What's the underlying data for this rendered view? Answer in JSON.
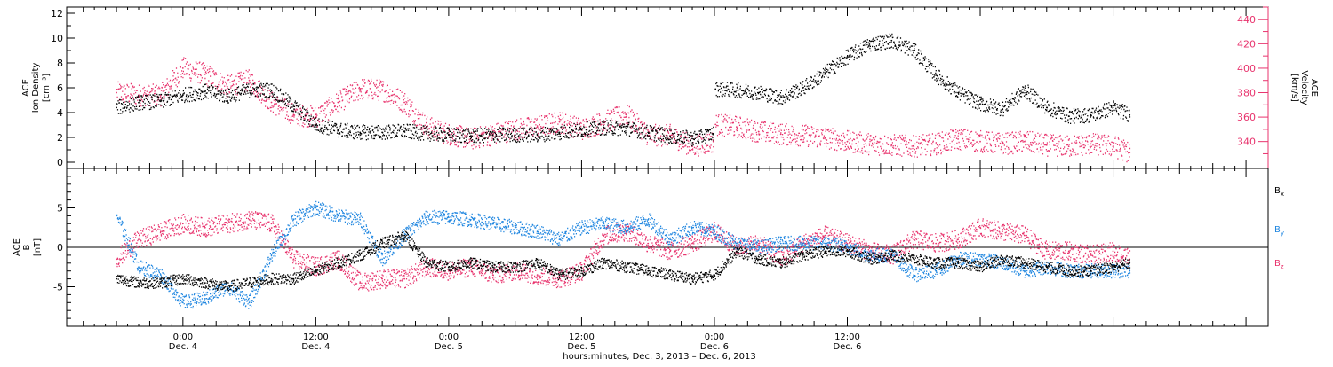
{
  "colors": {
    "density": "#000000",
    "velocity": "#e8336d",
    "bx": "#000000",
    "by": "#1f86e0",
    "bz": "#e8336d"
  },
  "chart_data": [
    {
      "type": "scatter",
      "panel": "top",
      "left_axis": {
        "label_lines": [
          "ACE",
          "Ion Density",
          "[cm⁻³]"
        ],
        "ylim": [
          -0.5,
          12.5
        ],
        "ticks": [
          0,
          2,
          4,
          6,
          8,
          10,
          12
        ]
      },
      "right_axis": {
        "label_lines": [
          "ACE",
          "Velocity",
          "[km/s]"
        ],
        "ylim": [
          318,
          450
        ],
        "ticks": [
          340,
          360,
          380,
          400,
          420,
          440
        ]
      },
      "series": [
        {
          "key": "density",
          "axis": "left",
          "x": [
            -6,
            -4,
            -2,
            0,
            2,
            4,
            6,
            8,
            10,
            12,
            14,
            16,
            18,
            20,
            22,
            24,
            26,
            28,
            30,
            32,
            34,
            36,
            38,
            40,
            42,
            44,
            46,
            47.9,
            48.1,
            50,
            52,
            54,
            56,
            58,
            60,
            62,
            64,
            66,
            68,
            70,
            72,
            74,
            76,
            78,
            80,
            82,
            84,
            85.5
          ],
          "values": [
            4.4,
            4.8,
            4.9,
            5.4,
            5.7,
            5.3,
            5.8,
            5.8,
            4.5,
            3.0,
            2.6,
            2.4,
            2.4,
            2.5,
            2.3,
            2.2,
            2.1,
            2.2,
            2.2,
            2.2,
            2.4,
            2.6,
            2.8,
            2.7,
            2.4,
            2.1,
            1.9,
            2.3,
            5.9,
            5.8,
            5.6,
            5.2,
            6.0,
            7.2,
            8.5,
            9.5,
            9.8,
            9.0,
            7.0,
            5.6,
            4.7,
            4.3,
            5.8,
            4.4,
            3.7,
            3.8,
            4.4,
            3.8
          ]
        },
        {
          "key": "velocity",
          "axis": "right",
          "x": [
            -6,
            -4,
            -2,
            0,
            2,
            4,
            6,
            8,
            10,
            12,
            14,
            16,
            18,
            20,
            22,
            24,
            26,
            28,
            30,
            32,
            34,
            36,
            38,
            40,
            42,
            44,
            46,
            47.9,
            48.1,
            50,
            52,
            54,
            56,
            58,
            60,
            62,
            64,
            66,
            68,
            70,
            72,
            74,
            76,
            78,
            80,
            82,
            84,
            85.5
          ],
          "values": [
            380,
            378,
            378,
            400,
            395,
            385,
            390,
            372,
            362,
            360,
            372,
            383,
            382,
            372,
            352,
            346,
            342,
            346,
            350,
            352,
            356,
            350,
            356,
            362,
            345,
            345,
            336,
            340,
            354,
            352,
            348,
            346,
            345,
            343,
            340,
            338,
            337,
            336,
            338,
            342,
            340,
            338,
            340,
            337,
            336,
            338,
            336,
            331
          ]
        }
      ],
      "xlim": [
        -10.5,
        98
      ],
      "grid": false
    },
    {
      "type": "scatter",
      "panel": "bottom",
      "left_axis": {
        "label_lines": [
          "ACE",
          "B",
          "[nT]"
        ],
        "ylim": [
          -10,
          10
        ],
        "ticks": [
          -5,
          0,
          5
        ]
      },
      "zero_line": true,
      "legend": [
        "Bx",
        "By",
        "Bz"
      ],
      "legend_position": "right",
      "series": [
        {
          "key": "bx",
          "name": "Bx",
          "x": [
            -6,
            -4,
            -2,
            0,
            2,
            4,
            6,
            8,
            10,
            12,
            14,
            16,
            18,
            20,
            22,
            24,
            26,
            28,
            30,
            32,
            34,
            36,
            38,
            40,
            42,
            44,
            46,
            48,
            50,
            52,
            54,
            56,
            58,
            60,
            62,
            64,
            66,
            68,
            70,
            72,
            74,
            76,
            78,
            80,
            82,
            84,
            85.5
          ],
          "values": [
            -4.0,
            -4.5,
            -4.5,
            -4.0,
            -4.5,
            -5.0,
            -4.5,
            -4.0,
            -4.0,
            -3.0,
            -2.0,
            -1.0,
            0.5,
            1.5,
            -2.0,
            -2.5,
            -2.0,
            -2.5,
            -2.5,
            -2.0,
            -3.5,
            -3.0,
            -2.0,
            -2.5,
            -3.0,
            -3.5,
            -4.0,
            -3.5,
            -0.5,
            -1.5,
            -2.0,
            -1.0,
            -0.5,
            -0.5,
            -1.5,
            -1.0,
            -1.5,
            -2.0,
            -2.0,
            -2.5,
            -1.5,
            -2.0,
            -2.5,
            -3.0,
            -3.0,
            -2.5,
            -2.0
          ]
        },
        {
          "key": "by",
          "name": "By",
          "x": [
            -6,
            -4,
            -2,
            0,
            2,
            4,
            6,
            8,
            10,
            12,
            14,
            16,
            18,
            20,
            22,
            24,
            26,
            28,
            30,
            32,
            34,
            36,
            38,
            40,
            42,
            44,
            46,
            48,
            50,
            52,
            54,
            56,
            58,
            60,
            62,
            64,
            66,
            68,
            70,
            72,
            74,
            76,
            78,
            80,
            82,
            84,
            85.5
          ],
          "values": [
            4.0,
            -2.5,
            -3.5,
            -7.0,
            -6.5,
            -5.0,
            -7.0,
            -1.0,
            3.5,
            5.0,
            4.0,
            3.5,
            -1.5,
            1.5,
            3.8,
            3.8,
            3.5,
            3.0,
            2.5,
            2.0,
            1.0,
            2.5,
            3.0,
            2.5,
            3.5,
            1.0,
            2.5,
            2.0,
            0.5,
            0.0,
            0.5,
            0.5,
            0.5,
            0.0,
            -1.0,
            -1.0,
            -3.5,
            -3.0,
            -1.5,
            -1.5,
            -2.0,
            -3.0,
            -2.5,
            -3.0,
            -3.0,
            -3.0,
            -3.0
          ]
        },
        {
          "key": "bz",
          "name": "Bz",
          "x": [
            -6,
            -4,
            -2,
            0,
            2,
            4,
            6,
            8,
            10,
            12,
            14,
            16,
            18,
            20,
            22,
            24,
            26,
            28,
            30,
            32,
            34,
            36,
            38,
            40,
            42,
            44,
            46,
            48,
            50,
            52,
            54,
            56,
            58,
            60,
            62,
            64,
            66,
            68,
            70,
            72,
            74,
            76,
            78,
            80,
            82,
            84,
            85.5
          ],
          "values": [
            -1.5,
            1.0,
            2.0,
            3.0,
            2.5,
            3.0,
            3.5,
            3.0,
            -1.5,
            -2.5,
            -1.5,
            -4.5,
            -4.0,
            -4.0,
            -2.5,
            -3.0,
            -2.5,
            -3.5,
            -3.0,
            -3.5,
            -4.0,
            -3.0,
            1.5,
            2.0,
            0.5,
            -0.5,
            0.5,
            2.0,
            0.0,
            0.5,
            -1.5,
            0.5,
            1.5,
            0.5,
            -0.5,
            -1.0,
            1.0,
            0.5,
            1.0,
            2.5,
            2.0,
            1.5,
            -0.5,
            -0.5,
            -1.0,
            -0.5,
            -1.5
          ]
        }
      ],
      "xlim": [
        -10.5,
        98
      ],
      "grid": false
    }
  ],
  "x_axis": {
    "ticks": [
      {
        "h": 0,
        "time": "0:00",
        "day": "Dec. 4"
      },
      {
        "h": 12,
        "time": "12:00",
        "day": "Dec. 4"
      },
      {
        "h": 24,
        "time": "0:00",
        "day": "Dec. 5"
      },
      {
        "h": 36,
        "time": "12:00",
        "day": "Dec. 5"
      },
      {
        "h": 48,
        "time": "0:00",
        "day": "Dec. 6"
      },
      {
        "h": 60,
        "time": "12:00",
        "day": "Dec. 6"
      }
    ],
    "title": "hours:minutes, Dec.  3, 2013 – Dec.  6, 2013"
  }
}
